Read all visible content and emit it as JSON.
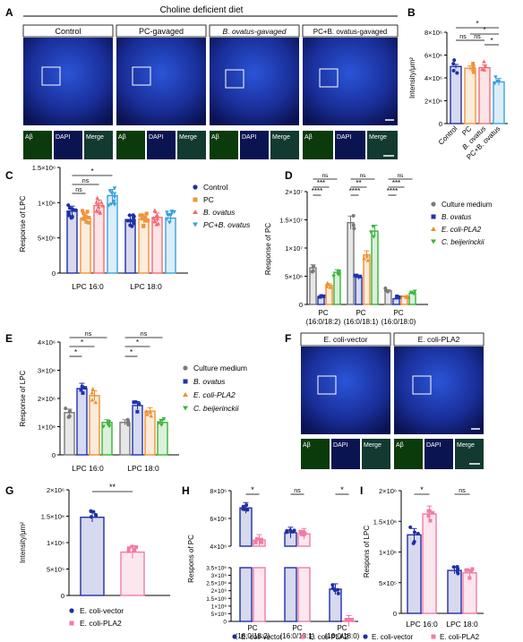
{
  "panels": {
    "A": {
      "letter": "A",
      "header": "Choline deficient diet",
      "groups": [
        "Control",
        "PC-gavaged",
        "B. ovatus-gavaged",
        "PC+B. ovatus-gavaged"
      ],
      "inset_labels": [
        "Aβ",
        "DAPI",
        "Merge"
      ]
    },
    "F": {
      "letter": "F",
      "groups": [
        "E. coli-vector",
        "E. coli-PLA2"
      ],
      "inset_labels": [
        "Aβ",
        "DAPI",
        "Merge"
      ]
    }
  },
  "colors": {
    "control": "#1f2fa6",
    "pc": "#f0943a",
    "ovatus": "#f26b76",
    "pc_ovatus": "#3aa0e0",
    "medium": "#7a7a7a",
    "plus_ovatus": "#2033b0",
    "pla2": "#f09030",
    "beij": "#3ab43a",
    "vector": "#1f2fa6",
    "pla2_pink": "#f27ba5"
  },
  "chart_data": [
    {
      "id": "B",
      "letter": "B",
      "type": "bar",
      "ylabel": "Intensity/μm²",
      "categories": [
        "Control",
        "PC",
        "B. ovatus",
        "PC+B. ovatus"
      ],
      "values": [
        5000000,
        4850000,
        4900000,
        3650000
      ],
      "errors": [
        180000,
        200000,
        250000,
        300000
      ],
      "ylim": [
        0,
        8000000
      ],
      "yticks": [
        "0",
        "2×10⁶",
        "4×10⁶",
        "6×10⁶",
        "8×10⁶"
      ],
      "sig": [
        "*",
        "ns",
        "ns",
        "*",
        "*"
      ]
    },
    {
      "id": "C",
      "letter": "C",
      "type": "bar",
      "ylabel": "Response of LPC",
      "categories": [
        "LPC 16:0",
        "LPC 18:0"
      ],
      "series": [
        {
          "name": "Control",
          "values": [
            880000,
            760000
          ]
        },
        {
          "name": "PC",
          "values": [
            780000,
            770000
          ]
        },
        {
          "name": "B. ovatus",
          "values": [
            960000,
            790000
          ]
        },
        {
          "name": "PC+B. ovatus",
          "values": [
            1100000,
            780000
          ]
        }
      ],
      "ylim": [
        0,
        1500000
      ],
      "yticks": [
        "0",
        "5×10⁵",
        "1×10⁶",
        "1.5×10⁶"
      ],
      "sig": [
        "ns",
        "ns",
        "*"
      ]
    },
    {
      "id": "D",
      "letter": "D",
      "type": "bar",
      "ylabel": "Response of PC",
      "categories": [
        "PC\n(16:0/18:2)",
        "PC\n(16:0/18:1)",
        "PC\n(16:0/18:0)"
      ],
      "series": [
        {
          "name": "Culture medium",
          "values": [
            6500000,
            14500000,
            2400000
          ]
        },
        {
          "name": "B. ovatus",
          "values": [
            1400000,
            4800000,
            1000000
          ]
        },
        {
          "name": "E. coli-PLA2",
          "values": [
            3400000,
            8800000,
            1400000
          ]
        },
        {
          "name": "C. beijerinckii",
          "values": [
            5700000,
            13000000,
            2000000
          ]
        }
      ],
      "ylim": [
        0,
        20000000
      ],
      "yticks": [
        "0",
        "5×10⁶",
        "1×10⁷",
        "1.5×10⁷",
        "2×10⁷"
      ],
      "sig": [
        "ns",
        "***",
        "****",
        "ns",
        "**",
        "****",
        "ns",
        "***",
        "****"
      ]
    },
    {
      "id": "E",
      "letter": "E",
      "type": "bar",
      "ylabel": "Response of LPC",
      "categories": [
        "LPC 16:0",
        "LPC 18:0"
      ],
      "series": [
        {
          "name": "Culture medium",
          "values": [
            1500000,
            1150000
          ]
        },
        {
          "name": "B. ovatus",
          "values": [
            2350000,
            1750000
          ]
        },
        {
          "name": "E. coli-PLA2",
          "values": [
            2100000,
            1550000
          ]
        },
        {
          "name": "C. beijerinckii",
          "values": [
            1150000,
            1150000
          ]
        }
      ],
      "ylim": [
        0,
        4000000
      ],
      "yticks": [
        "0",
        "1×10⁶",
        "2×10⁶",
        "3×10⁶",
        "4×10⁶"
      ],
      "sig": [
        "ns",
        "*",
        "*",
        "ns",
        "*",
        "*"
      ]
    },
    {
      "id": "G",
      "letter": "G",
      "type": "bar",
      "ylabel": "Intensity/μm²",
      "categories": [
        "E. coli-vector",
        "E. coli-PLA2"
      ],
      "values": [
        1480000,
        820000
      ],
      "errors": [
        90000,
        120000
      ],
      "ylim": [
        0,
        2000000
      ],
      "yticks": [
        "0",
        "5×10⁵",
        "1×10⁶",
        "1.5×10⁶",
        "2×10⁶"
      ],
      "sig": [
        "**"
      ]
    },
    {
      "id": "H",
      "letter": "H",
      "type": "bar",
      "ylabel": "Respons of PC",
      "categories": [
        "PC\n(16:0/18:2)",
        "PC\n(16:0/18:1)",
        "PC\n(16:0/18:0)"
      ],
      "series": [
        {
          "name": "E. coli-vector",
          "values": [
            6600000,
            4600000,
            2100000
          ]
        },
        {
          "name": "E. coli-PLA2",
          "values": [
            4000000,
            4500000,
            30000
          ]
        }
      ],
      "ylim": [
        0,
        8000000
      ],
      "yticks_top": [
        "4×10⁶",
        "6×10⁶",
        "8×10⁶"
      ],
      "yticks_bottom": [
        "0",
        "5×10⁵",
        "1×10⁶",
        "1.5×10⁶",
        "2×10⁶",
        "2.5×10⁶",
        "3×10⁶",
        "3.5×10⁶"
      ],
      "sig": [
        "*",
        "ns",
        "*"
      ]
    },
    {
      "id": "I",
      "letter": "I",
      "type": "bar",
      "ylabel": "Respons of LPC",
      "categories": [
        "LPC 16:0",
        "LPC 18:0"
      ],
      "series": [
        {
          "name": "E. coli-vector",
          "values": [
            1280000,
            700000
          ]
        },
        {
          "name": "E. coli-PLA2",
          "values": [
            1620000,
            660000
          ]
        }
      ],
      "ylim": [
        0,
        2000000
      ],
      "yticks": [
        "0",
        "5×10⁵",
        "1×10⁶",
        "1.5×10⁶",
        "2×10⁶"
      ],
      "sig": [
        "*",
        "ns"
      ]
    }
  ]
}
